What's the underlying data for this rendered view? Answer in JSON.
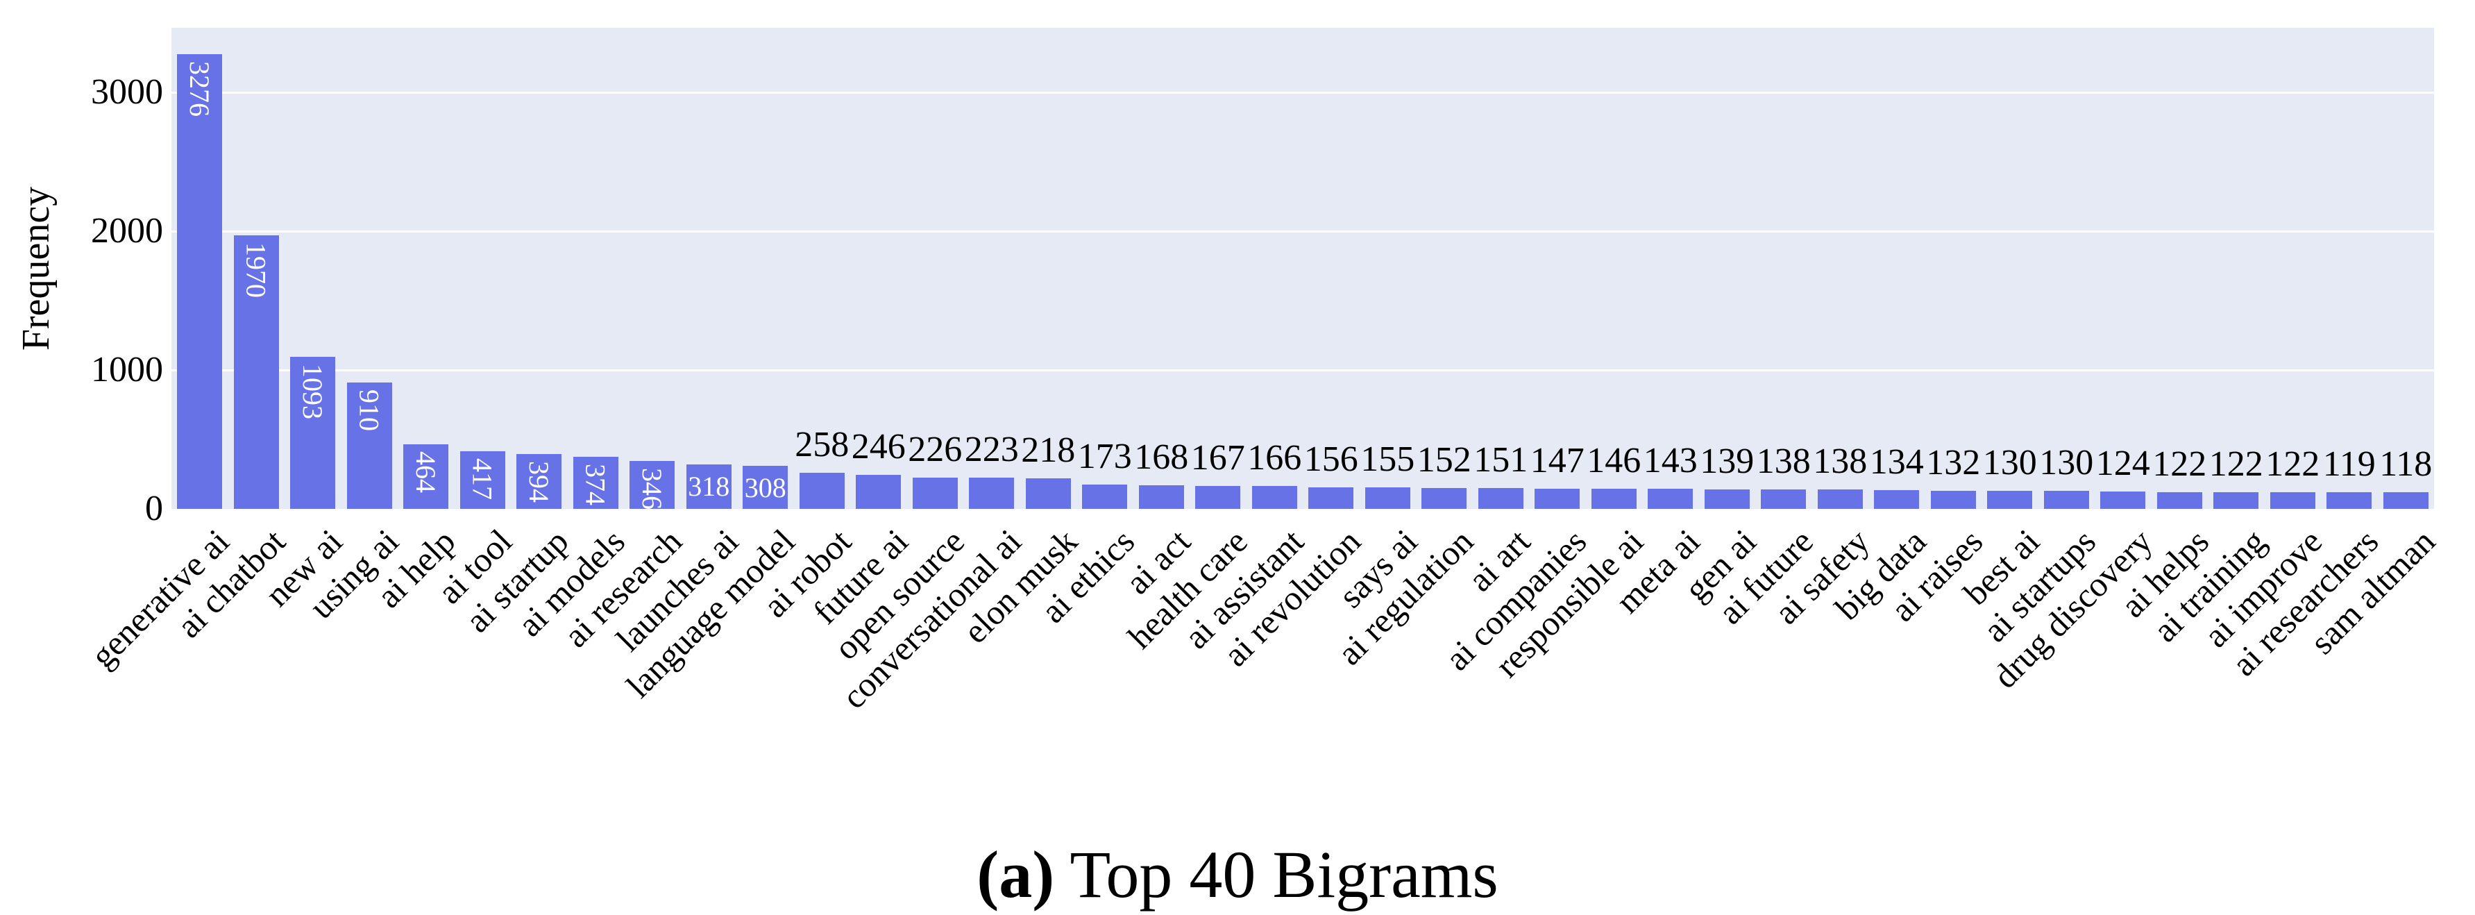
{
  "figure": {
    "caption_label": "(a)",
    "caption_text": "Top 40 Bigrams"
  },
  "chart_data": {
    "type": "bar",
    "title": "",
    "xlabel": "",
    "ylabel": "Frequency",
    "categories": [
      "generative ai",
      "ai chatbot",
      "new ai",
      "using ai",
      "ai help",
      "ai tool",
      "ai startup",
      "ai models",
      "ai research",
      "launches ai",
      "language model",
      "ai robot",
      "future ai",
      "open source",
      "conversational ai",
      "elon musk",
      "ai ethics",
      "ai act",
      "health care",
      "ai assistant",
      "ai revolution",
      "says ai",
      "ai regulation",
      "ai art",
      "ai companies",
      "responsible ai",
      "meta ai",
      "gen ai",
      "ai future",
      "ai safety",
      "big data",
      "ai raises",
      "best ai",
      "ai startups",
      "drug discovery",
      "ai helps",
      "ai training",
      "ai improve",
      "ai researchers",
      "sam altman"
    ],
    "values": [
      3276,
      1970,
      1093,
      910,
      464,
      417,
      394,
      374,
      346,
      318,
      308,
      258,
      246,
      226,
      223,
      218,
      173,
      168,
      167,
      166,
      156,
      155,
      152,
      151,
      147,
      146,
      143,
      139,
      138,
      138,
      134,
      132,
      130,
      130,
      124,
      122,
      122,
      122,
      119,
      118
    ],
    "yticks": [
      0,
      1000,
      2000,
      3000
    ],
    "ytick_labels": [
      "0",
      "1000",
      "2000",
      "3000"
    ],
    "ylim": [
      0,
      3465
    ],
    "grid": true,
    "legend": "none",
    "colors": {
      "bar": "#6672e6",
      "plot_background": "#e5eaf4",
      "gridline": "#ffffff",
      "text": "#000000",
      "inside_label": "#ffffff"
    }
  }
}
